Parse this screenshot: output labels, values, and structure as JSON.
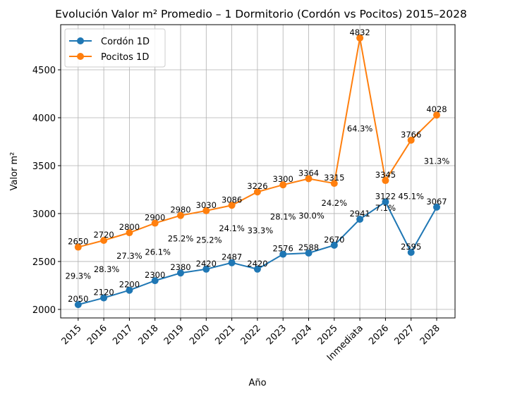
{
  "chart_data": {
    "type": "line",
    "title": "Evolución Valor m² Promedio – 1 Dormitorio (Cordón vs Pocitos) 2015–2028",
    "xlabel": "Año",
    "ylabel": "Valor m²",
    "categories": [
      "2015",
      "2016",
      "2017",
      "2018",
      "2019",
      "2020",
      "2021",
      "2022",
      "2023",
      "2024",
      "2025",
      "Inmediata",
      "2026",
      "2027",
      "2028"
    ],
    "series": [
      {
        "name": "Cordón 1D",
        "color": "#1f77b4",
        "values": [
          2050,
          2120,
          2200,
          2300,
          2380,
          2420,
          2487,
          2420,
          2576,
          2588,
          2670,
          2941,
          3122,
          2595,
          3067
        ]
      },
      {
        "name": "Pocitos 1D",
        "color": "#ff7f0e",
        "values": [
          2650,
          2720,
          2800,
          2900,
          2980,
          3030,
          3086,
          3226,
          3300,
          3364,
          3315,
          4832,
          3345,
          3766,
          4028
        ]
      }
    ],
    "difference_labels": [
      "29.3%",
      "28.3%",
      "27.3%",
      "26.1%",
      "25.2%",
      "25.2%",
      "24.1%",
      "33.3%",
      "28.1%",
      "30.0%",
      "24.2%",
      "64.3%",
      "7.1%",
      "45.1%",
      "31.3%"
    ],
    "yticks": [
      2000,
      2500,
      3000,
      3500,
      4000,
      4500
    ],
    "ylim": [
      1911,
      4971
    ],
    "grid": true,
    "legend_position": "top-left"
  }
}
